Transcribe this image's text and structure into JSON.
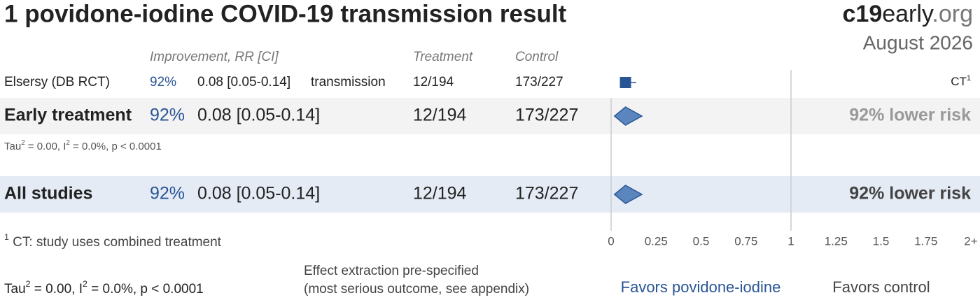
{
  "title": "1 povidone-iodine COVID-19 transmission result",
  "brand": {
    "bold": "c19",
    "rest": "early",
    "tld": ".org",
    "date": "August 2026"
  },
  "chart_data": {
    "type": "forest",
    "columns": {
      "improvement": "Improvement, RR [CI]",
      "treatment": "Treatment",
      "control": "Control"
    },
    "xlim": [
      0,
      2
    ],
    "xticks": [
      0,
      0.25,
      0.5,
      0.75,
      1,
      1.25,
      1.5,
      1.75,
      {
        "value": 2,
        "label": "2+"
      }
    ],
    "color": "#2a5595",
    "rows": [
      {
        "kind": "study",
        "name": "Elsersy (DB RCT)",
        "improvement": "92%",
        "rr": 0.08,
        "ci": [
          0.05,
          0.14
        ],
        "rr_label": "0.08 [0.05-0.14]",
        "outcome": "transmission",
        "treatment": "12/194",
        "control": "173/227",
        "note": "CT",
        "note_ref": "1"
      },
      {
        "kind": "summary",
        "name": "Early treatment",
        "improvement": "92%",
        "rr": 0.08,
        "ci": [
          0.05,
          0.14
        ],
        "rr_label": "0.08 [0.05-0.14]",
        "treatment": "12/194",
        "control": "173/227",
        "result": "92% lower risk",
        "stats": [
          {
            "text": "Tau"
          },
          {
            "sup": "2"
          },
          {
            "text": " = 0.00, I"
          },
          {
            "sup": "2"
          },
          {
            "text": " = 0.0%, p < 0.0001"
          }
        ]
      },
      {
        "kind": "total",
        "name": "All studies",
        "improvement": "92%",
        "rr": 0.08,
        "ci": [
          0.05,
          0.14
        ],
        "rr_label": "0.08 [0.05-0.14]",
        "treatment": "12/194",
        "control": "173/227",
        "result": "92% lower risk",
        "stats": [
          {
            "text": "Tau"
          },
          {
            "sup": "2"
          },
          {
            "text": " = 0.00, I"
          },
          {
            "sup": "2"
          },
          {
            "text": " = 0.0%, p < 0.0001"
          }
        ]
      }
    ],
    "footnote": [
      {
        "sup": "1"
      },
      {
        "text": " CT: study uses combined treatment"
      }
    ],
    "method": [
      "Effect extraction pre-specified",
      "(most serious outcome, see appendix)"
    ],
    "favors_left": "Favors povidone-iodine",
    "favors_right": "Favors control"
  }
}
